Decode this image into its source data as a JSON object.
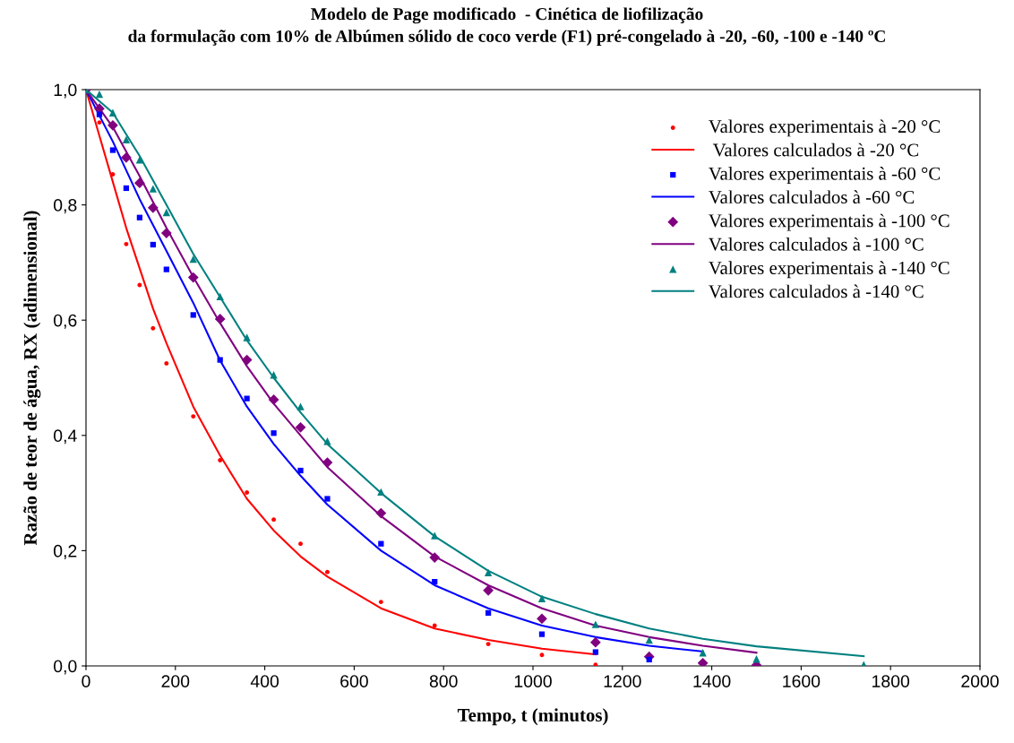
{
  "chart_data": {
    "type": "scatter",
    "title": "Modelo de Page modificado  - Cinética de liofilização\nda formulação com 10% de Albúmen sólido de coco verde (F1) pré-congelado à -20, -60, -100 e -140 ºC",
    "xlabel": "Tempo, t (minutos)",
    "ylabel": "Razão de teor de água, RX (adimensional)",
    "xlim": [
      0,
      2000
    ],
    "xticks": [
      0,
      200,
      400,
      600,
      800,
      1000,
      1200,
      1400,
      1600,
      1800,
      2000
    ],
    "ylim": [
      0,
      1.0
    ],
    "yticks": [
      {
        "value": 0,
        "label": "0,0"
      },
      {
        "value": 0.2,
        "label": "0,2"
      },
      {
        "value": 0.4,
        "label": "0,4"
      },
      {
        "value": 0.6,
        "label": "0,6"
      },
      {
        "value": 0.8,
        "label": "0,8"
      },
      {
        "value": 1.0,
        "label": "1,0"
      }
    ],
    "grid": false,
    "legend": "top right",
    "series": [
      {
        "name": "Valores experimentais à -20 °C",
        "marker": "circle",
        "color": "#ff0000",
        "x": [
          30,
          60,
          90,
          120,
          150,
          180,
          240,
          300,
          360,
          420,
          480,
          540,
          660,
          780,
          900,
          1020,
          1140
        ],
        "values": [
          0.943,
          0.853,
          0.732,
          0.661,
          0.586,
          0.525,
          0.433,
          0.357,
          0.301,
          0.254,
          0.212,
          0.163,
          0.111,
          0.07,
          0.038,
          0.019,
          0.002
        ]
      },
      {
        "name": " Valores calculados à -20 °C",
        "type": "line",
        "color": "#ff0000",
        "x": [
          0,
          30,
          60,
          90,
          120,
          150,
          180,
          240,
          300,
          360,
          420,
          480,
          540,
          660,
          780,
          900,
          1020,
          1140
        ],
        "values": [
          1.0,
          0.92,
          0.84,
          0.76,
          0.69,
          0.62,
          0.56,
          0.45,
          0.365,
          0.29,
          0.235,
          0.19,
          0.155,
          0.1,
          0.065,
          0.045,
          0.03,
          0.02
        ]
      },
      {
        "name": "Valores experimentais à -60 °C",
        "marker": "square",
        "color": "#0000ff",
        "x": [
          30,
          60,
          90,
          120,
          150,
          180,
          240,
          300,
          360,
          420,
          480,
          540,
          660,
          780,
          900,
          1020,
          1140,
          1260
        ],
        "values": [
          0.957,
          0.895,
          0.829,
          0.778,
          0.731,
          0.688,
          0.609,
          0.531,
          0.464,
          0.404,
          0.339,
          0.29,
          0.212,
          0.146,
          0.092,
          0.055,
          0.024,
          0.011
        ]
      },
      {
        "name": "Valores calculados à -60 °C",
        "type": "line",
        "color": "#0000ff",
        "x": [
          0,
          60,
          120,
          180,
          240,
          300,
          360,
          420,
          480,
          540,
          660,
          780,
          900,
          1020,
          1140,
          1260,
          1380
        ],
        "values": [
          1.0,
          0.91,
          0.81,
          0.72,
          0.63,
          0.53,
          0.45,
          0.385,
          0.33,
          0.28,
          0.2,
          0.14,
          0.1,
          0.07,
          0.05,
          0.035,
          0.025
        ]
      },
      {
        "name": "Valores experimentais à -100 °C",
        "marker": "diamond",
        "color": "#800080",
        "x": [
          0,
          30,
          60,
          90,
          120,
          150,
          180,
          240,
          300,
          360,
          420,
          480,
          540,
          660,
          780,
          900,
          1020,
          1140,
          1260,
          1380,
          1500
        ],
        "values": [
          1.0,
          0.967,
          0.938,
          0.882,
          0.838,
          0.795,
          0.751,
          0.674,
          0.602,
          0.531,
          0.462,
          0.414,
          0.353,
          0.265,
          0.188,
          0.131,
          0.082,
          0.041,
          0.016,
          0.005,
          0.001
        ]
      },
      {
        "name": "Valores calculados à -100 °C",
        "type": "line",
        "color": "#800080",
        "x": [
          0,
          60,
          120,
          180,
          240,
          300,
          360,
          420,
          480,
          540,
          660,
          780,
          900,
          1020,
          1140,
          1260,
          1380,
          1500
        ],
        "values": [
          1.0,
          0.935,
          0.85,
          0.76,
          0.675,
          0.595,
          0.52,
          0.455,
          0.4,
          0.345,
          0.26,
          0.19,
          0.14,
          0.1,
          0.07,
          0.05,
          0.035,
          0.023
        ]
      },
      {
        "name": "Valores experimentais à -140 °C",
        "marker": "triangle",
        "color": "#008080",
        "x": [
          0,
          30,
          60,
          90,
          120,
          150,
          180,
          240,
          300,
          360,
          420,
          480,
          540,
          660,
          780,
          900,
          1020,
          1140,
          1260,
          1380,
          1500,
          1740
        ],
        "values": [
          1.0,
          0.992,
          0.96,
          0.913,
          0.878,
          0.828,
          0.787,
          0.706,
          0.641,
          0.57,
          0.505,
          0.45,
          0.39,
          0.302,
          0.226,
          0.162,
          0.117,
          0.072,
          0.045,
          0.023,
          0.012,
          0.002
        ]
      },
      {
        "name": "Valores calculados à -140 °C",
        "type": "line",
        "color": "#008080",
        "x": [
          0,
          60,
          120,
          180,
          240,
          300,
          360,
          420,
          480,
          540,
          660,
          780,
          900,
          1020,
          1140,
          1260,
          1380,
          1500,
          1740
        ],
        "values": [
          1.0,
          0.96,
          0.885,
          0.8,
          0.715,
          0.64,
          0.565,
          0.5,
          0.44,
          0.385,
          0.3,
          0.225,
          0.165,
          0.12,
          0.09,
          0.065,
          0.047,
          0.034,
          0.017
        ]
      }
    ]
  }
}
